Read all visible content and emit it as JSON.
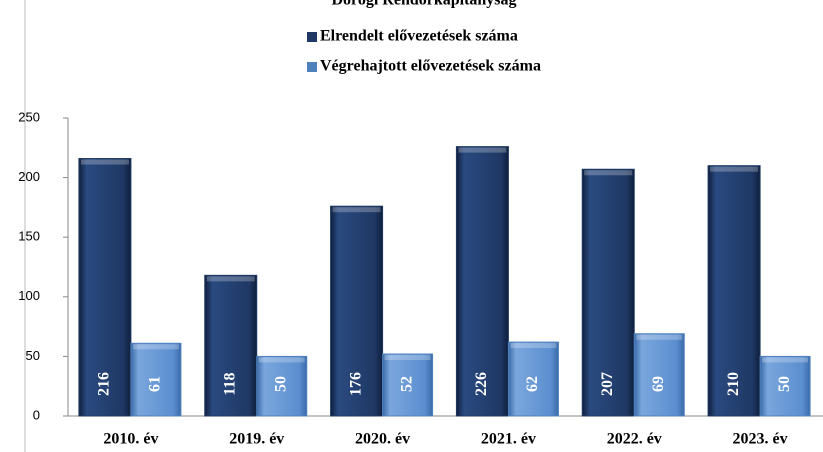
{
  "chart_data": {
    "type": "bar",
    "title": "Dorogi Rendőrkapitányság",
    "categories": [
      "2010. év",
      "2019. év",
      "2020. év",
      "2021. év",
      "2022. év",
      "2023. év"
    ],
    "series": [
      {
        "name": "Elrendelt elővezetések száma",
        "color": "#1f3864",
        "values": [
          216,
          118,
          176,
          226,
          207,
          210
        ]
      },
      {
        "name": "Végrehajtott elővezetések száma",
        "color": "#4f81bd",
        "values": [
          61,
          50,
          52,
          62,
          69,
          50
        ]
      }
    ],
    "ylim": [
      0,
      250
    ],
    "yticks": [
      0,
      50,
      100,
      150,
      200,
      250
    ],
    "legend": "top"
  }
}
